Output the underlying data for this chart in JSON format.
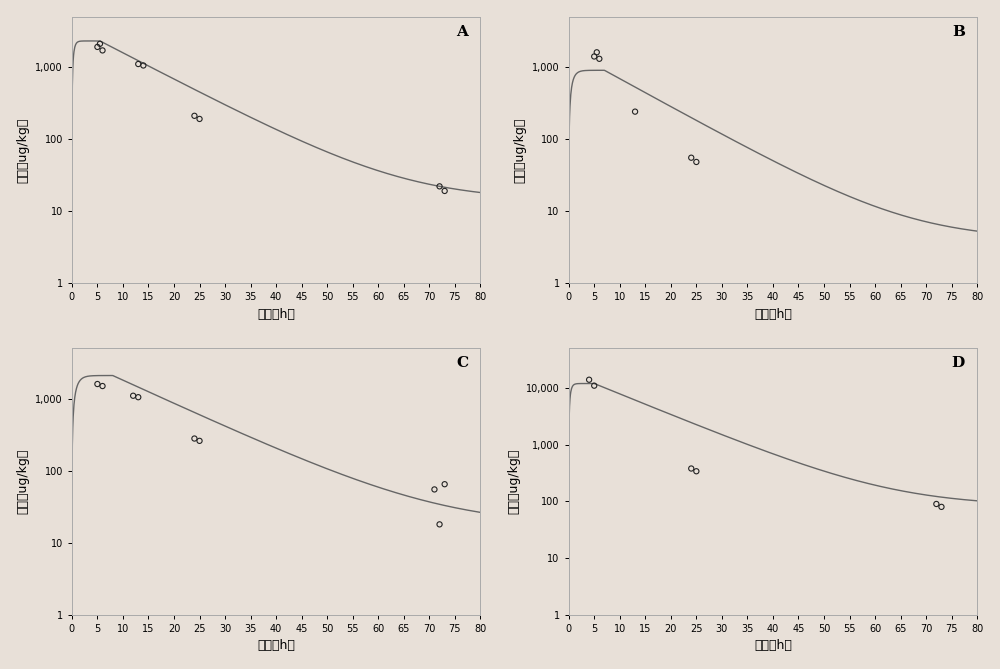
{
  "panels": [
    "A",
    "B",
    "C",
    "D"
  ],
  "xlabel": "时间（h）",
  "ylabel": "浓度（ug/kg）",
  "bg_color": "#e8e0d8",
  "line_color": "#666666",
  "marker_color": "#222222",
  "panel_A": {
    "scatter_x": [
      5.0,
      5.5,
      6.0,
      13.0,
      14.0,
      24.0,
      25.0,
      72.0,
      73.0
    ],
    "scatter_y": [
      1900,
      2100,
      1700,
      1100,
      1050,
      210,
      190,
      22,
      19
    ],
    "peak": 2300,
    "t_peak": 5.5,
    "k_rise": 3.0,
    "k_fall": 0.085,
    "floor": 14,
    "ylim": [
      1,
      5000
    ],
    "xlim": [
      0,
      80
    ],
    "yticks": [
      1,
      10,
      100,
      1000
    ],
    "yticklabels": [
      "1",
      "10",
      "100",
      "1,000"
    ],
    "xticks": [
      0,
      5,
      10,
      15,
      20,
      25,
      30,
      35,
      40,
      45,
      50,
      55,
      60,
      65,
      70,
      75,
      80
    ]
  },
  "panel_B": {
    "scatter_x": [
      5.0,
      5.5,
      6.0,
      13.0,
      24.0,
      25.0
    ],
    "scatter_y": [
      1400,
      1600,
      1300,
      240,
      55,
      48
    ],
    "peak": 900,
    "t_peak": 7.0,
    "k_rise": 1.5,
    "k_fall": 0.09,
    "floor": 4,
    "ylim": [
      1,
      5000
    ],
    "xlim": [
      0,
      80
    ],
    "yticks": [
      1,
      10,
      100,
      1000
    ],
    "yticklabels": [
      "1",
      "10",
      "100",
      "1,000"
    ],
    "xticks": [
      0,
      5,
      10,
      15,
      20,
      25,
      30,
      35,
      40,
      45,
      50,
      55,
      60,
      65,
      70,
      75,
      80
    ]
  },
  "panel_C": {
    "scatter_x": [
      5.0,
      6.0,
      12.0,
      13.0,
      24.0,
      25.0,
      71.0,
      72.0,
      73.0
    ],
    "scatter_y": [
      1600,
      1500,
      1100,
      1050,
      280,
      260,
      55,
      18,
      65
    ],
    "peak": 2100,
    "t_peak": 8.0,
    "k_rise": 1.2,
    "k_fall": 0.075,
    "floor": 17,
    "ylim": [
      1,
      5000
    ],
    "xlim": [
      0,
      80
    ],
    "yticks": [
      1,
      10,
      100,
      1000
    ],
    "yticklabels": [
      "1",
      "10",
      "100",
      "1,000"
    ],
    "xticks": [
      0,
      5,
      10,
      15,
      20,
      25,
      30,
      35,
      40,
      45,
      50,
      55,
      60,
      65,
      70,
      75,
      80
    ]
  },
  "panel_D": {
    "scatter_x": [
      4.0,
      5.0,
      24.0,
      25.0,
      72.0,
      73.0
    ],
    "scatter_y": [
      14000,
      11000,
      380,
      340,
      90,
      80
    ],
    "peak": 12000,
    "t_peak": 5.0,
    "k_rise": 3.0,
    "k_fall": 0.085,
    "floor": 82,
    "ylim": [
      1,
      50000
    ],
    "xlim": [
      0,
      80
    ],
    "yticks": [
      1,
      10,
      100,
      1000,
      10000
    ],
    "yticklabels": [
      "1",
      "10",
      "100",
      "1,000",
      "10,000"
    ],
    "xticks": [
      0,
      5,
      10,
      15,
      20,
      25,
      30,
      35,
      40,
      45,
      50,
      55,
      60,
      65,
      70,
      75,
      80
    ]
  }
}
